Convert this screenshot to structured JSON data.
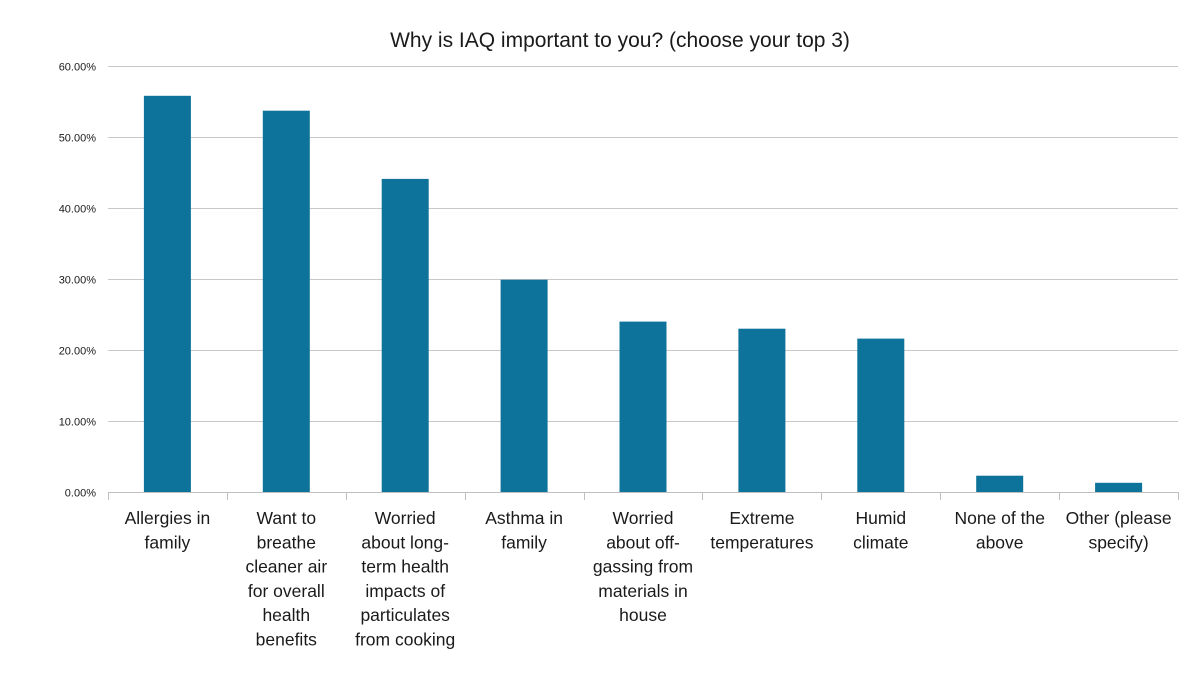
{
  "chart_data": {
    "type": "bar",
    "title": "Why is IAQ important to you? (choose your top 3)",
    "xlabel": "",
    "ylabel": "",
    "ylim": [
      0,
      0.6
    ],
    "yticks": [
      0,
      0.1,
      0.2,
      0.3,
      0.4,
      0.5,
      0.6
    ],
    "ytick_labels": [
      "0.00%",
      "10.00%",
      "20.00%",
      "30.00%",
      "40.00%",
      "50.00%",
      "60.00%"
    ],
    "grid": true,
    "legend": "none",
    "categories": [
      "Allergies in family",
      "Want to breathe cleaner air for overall health benefits",
      "Worried about long-term health impacts of particulates from cooking",
      "Asthma in family",
      "Worried about off-gassing from materials in house",
      "Extreme temperatures",
      "Humid climate",
      "None of the above",
      "Other (please specify)"
    ],
    "category_label_lines": [
      [
        "Allergies in",
        "family"
      ],
      [
        "Want to",
        "breathe",
        "cleaner air",
        "for overall",
        "health",
        "benefits"
      ],
      [
        "Worried",
        "about long-",
        "term health",
        "impacts of",
        "particulates",
        "from cooking"
      ],
      [
        "Asthma in",
        "family"
      ],
      [
        "Worried",
        "about off-",
        "gassing from",
        "materials in",
        "house"
      ],
      [
        "Extreme",
        "temperatures"
      ],
      [
        "Humid",
        "climate"
      ],
      [
        "None of the",
        "above"
      ],
      [
        "Other (please",
        "specify)"
      ]
    ],
    "values": [
      0.558,
      0.537,
      0.441,
      0.299,
      0.24,
      0.23,
      0.216,
      0.023,
      0.013
    ],
    "colors": {
      "bar": "#0e739b",
      "grid": "#c8c8c8",
      "axis": "#bfbfbf",
      "text": "#1a1a1a"
    }
  }
}
